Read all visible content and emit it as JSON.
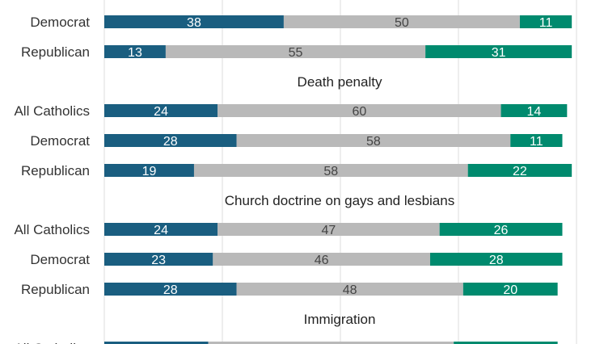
{
  "chart_data": {
    "type": "bar",
    "stacked": true,
    "orientation": "horizontal",
    "colors": [
      "#1a5e80",
      "#b9b9b9",
      "#008a6e"
    ],
    "label_colors": [
      "#ffffff",
      "#444444",
      "#ffffff"
    ],
    "grid": true,
    "xlim": [
      0,
      100
    ],
    "groups": [
      {
        "title": "",
        "rows": [
          {
            "label": "Democrat",
            "values": [
              38,
              50,
              11
            ]
          },
          {
            "label": "Republican",
            "values": [
              13,
              55,
              31
            ]
          }
        ]
      },
      {
        "title": "Death penalty",
        "rows": [
          {
            "label": "All Catholics",
            "values": [
              24,
              60,
              14
            ]
          },
          {
            "label": "Democrat",
            "values": [
              28,
              58,
              11
            ]
          },
          {
            "label": "Republican",
            "values": [
              19,
              58,
              22
            ]
          }
        ]
      },
      {
        "title": "Church doctrine on gays and lesbians",
        "rows": [
          {
            "label": "All Catholics",
            "values": [
              24,
              47,
              26
            ]
          },
          {
            "label": "Democrat",
            "values": [
              23,
              46,
              28
            ]
          },
          {
            "label": "Republican",
            "values": [
              28,
              48,
              20
            ]
          }
        ]
      },
      {
        "title": "Immigration",
        "rows": [
          {
            "label": "All Catholics",
            "values": [
              22,
              52,
              22
            ]
          }
        ]
      }
    ]
  }
}
